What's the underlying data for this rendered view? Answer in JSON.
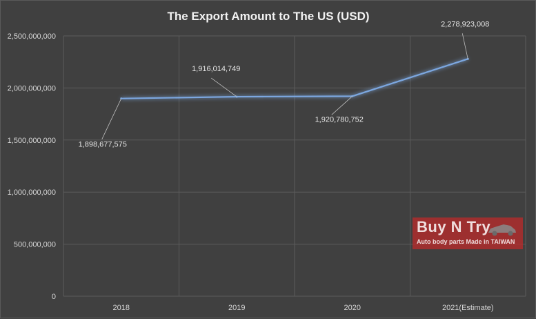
{
  "chart_data": {
    "type": "line",
    "title": "The Export Amount to The US (USD)",
    "categories": [
      "2018",
      "2019",
      "2020",
      "2021(Estimate)"
    ],
    "series": [
      {
        "values": [
          1898677575,
          1916014749,
          1920780752,
          2278923008
        ],
        "data_labels": [
          "1,898,677,575",
          "1,916,014,749",
          "1,920,780,752",
          "2,278,923,008"
        ]
      }
    ],
    "ylim": [
      0,
      2500000000
    ],
    "yticks": [
      0,
      500000000,
      1000000000,
      1500000000,
      2000000000,
      2500000000
    ],
    "ytick_labels": [
      "0",
      "500,000,000",
      "1,000,000,000",
      "1,500,000,000",
      "2,000,000,000",
      "2,500,000,000"
    ],
    "grid": true,
    "line_color": "#7ba7e0",
    "background": "#404040"
  },
  "watermark": {
    "name": "Buy N Try",
    "tagline": "Auto body parts Made in TAIWAN",
    "icon": "car-icon"
  }
}
